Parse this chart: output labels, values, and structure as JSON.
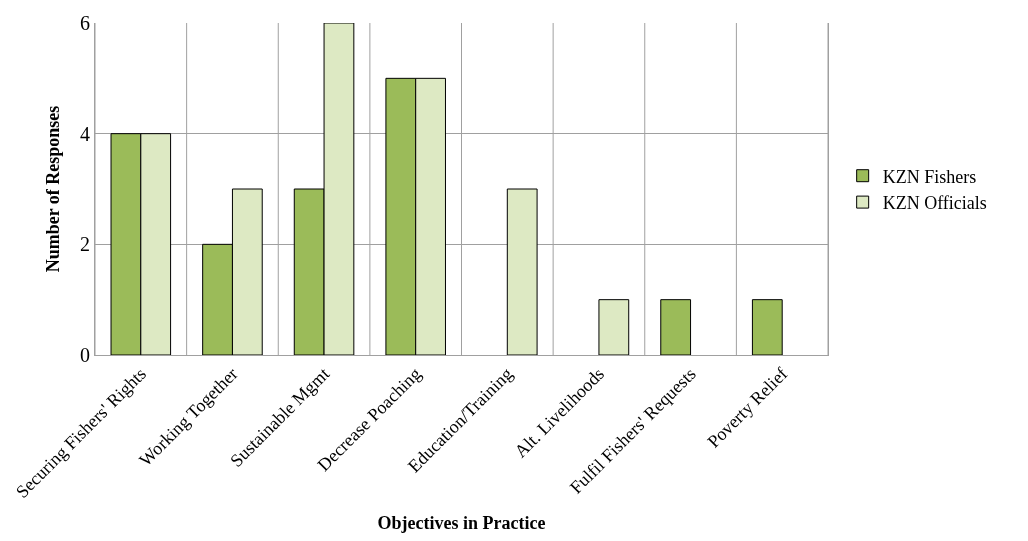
{
  "chart_data": {
    "type": "bar",
    "xlabel": "Objectives in Practice",
    "ylabel": "Number of Responses",
    "categories": [
      "Securing Fishers' Rights",
      "Working Together",
      "Sustainable Mgmt",
      "Decrease Poaching",
      "Education/Training",
      "Alt. Livelihoods",
      "Fulfil Fishers' Requests",
      "Poverty Relief"
    ],
    "series": [
      {
        "name": "KZN Fishers",
        "color": "#9bbb59",
        "values": [
          4,
          2,
          3,
          5,
          0,
          0,
          1,
          1
        ]
      },
      {
        "name": "KZN Officials",
        "color": "#dde9c3",
        "values": [
          4,
          3,
          6,
          5,
          3,
          1,
          0,
          0
        ]
      }
    ],
    "ylim": [
      0,
      6
    ],
    "yticks": [
      0,
      2,
      4,
      6
    ],
    "grid": true,
    "legend": "right"
  }
}
